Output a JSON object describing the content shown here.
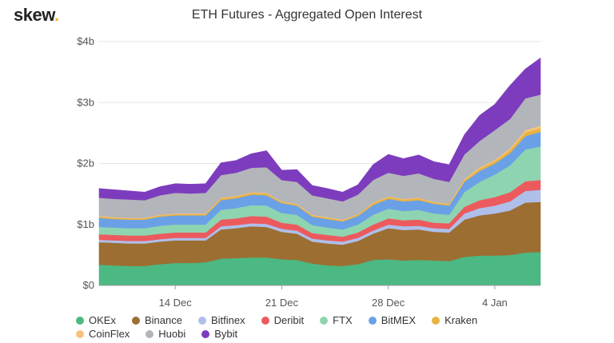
{
  "header": {
    "logo_text": "skew",
    "logo_dot": "."
  },
  "chart_data": {
    "type": "area",
    "stacked": true,
    "title": "ETH Futures - Aggregated Open Interest",
    "xlabel": "",
    "ylabel": "",
    "ylim": [
      0,
      4000000000
    ],
    "y_ticks": [
      0,
      1000000000,
      2000000000,
      3000000000,
      4000000000
    ],
    "y_tick_labels": [
      "$0",
      "$1b",
      "$2b",
      "$3b",
      "$4b"
    ],
    "x": [
      "Dec 9",
      "Dec 10",
      "Dec 11",
      "Dec 12",
      "Dec 13",
      "Dec 14",
      "Dec 15",
      "Dec 16",
      "Dec 17",
      "Dec 18",
      "Dec 19",
      "Dec 20",
      "Dec 21",
      "Dec 22",
      "Dec 23",
      "Dec 24",
      "Dec 25",
      "Dec 26",
      "Dec 27",
      "Dec 28",
      "Dec 29",
      "Dec 30",
      "Dec 31",
      "Jan 1",
      "Jan 2",
      "Jan 3",
      "Jan 4",
      "Jan 5",
      "Jan 6",
      "Jan 7"
    ],
    "x_tick_labels": [
      {
        "label": "14 Dec",
        "at": "Dec 14"
      },
      {
        "label": "21 Dec",
        "at": "Dec 21"
      },
      {
        "label": "28 Dec",
        "at": "Dec 28"
      },
      {
        "label": "4 Jan",
        "at": "Jan 4"
      }
    ],
    "grid": true,
    "legend": "bottom",
    "series": [
      {
        "name": "OKEx",
        "color": "#4cb883",
        "values": [
          0.34,
          0.33,
          0.32,
          0.32,
          0.35,
          0.37,
          0.37,
          0.38,
          0.44,
          0.45,
          0.46,
          0.46,
          0.43,
          0.42,
          0.36,
          0.33,
          0.32,
          0.35,
          0.42,
          0.43,
          0.41,
          0.42,
          0.41,
          0.4,
          0.47,
          0.49,
          0.49,
          0.5,
          0.54,
          0.55
        ]
      },
      {
        "name": "Binance",
        "color": "#9c6e32",
        "values": [
          0.37,
          0.37,
          0.37,
          0.37,
          0.37,
          0.37,
          0.37,
          0.36,
          0.48,
          0.49,
          0.51,
          0.5,
          0.45,
          0.43,
          0.36,
          0.36,
          0.35,
          0.38,
          0.43,
          0.51,
          0.5,
          0.5,
          0.47,
          0.47,
          0.61,
          0.66,
          0.69,
          0.73,
          0.82,
          0.82
        ]
      },
      {
        "name": "Bitfinex",
        "color": "#aebfea",
        "values": [
          0.04,
          0.04,
          0.04,
          0.04,
          0.04,
          0.04,
          0.04,
          0.04,
          0.05,
          0.05,
          0.05,
          0.05,
          0.05,
          0.05,
          0.05,
          0.05,
          0.05,
          0.05,
          0.05,
          0.06,
          0.06,
          0.06,
          0.06,
          0.06,
          0.1,
          0.12,
          0.13,
          0.15,
          0.19,
          0.2
        ]
      },
      {
        "name": "Deribit",
        "color": "#ec5a5e",
        "values": [
          0.09,
          0.09,
          0.09,
          0.09,
          0.09,
          0.09,
          0.09,
          0.09,
          0.11,
          0.11,
          0.12,
          0.12,
          0.1,
          0.1,
          0.09,
          0.09,
          0.08,
          0.09,
          0.1,
          0.1,
          0.1,
          0.1,
          0.09,
          0.09,
          0.11,
          0.13,
          0.14,
          0.15,
          0.16,
          0.16
        ]
      },
      {
        "name": "FTX",
        "color": "#8fd4b0",
        "values": [
          0.12,
          0.12,
          0.12,
          0.12,
          0.13,
          0.13,
          0.13,
          0.13,
          0.16,
          0.17,
          0.18,
          0.18,
          0.16,
          0.16,
          0.13,
          0.12,
          0.12,
          0.13,
          0.16,
          0.16,
          0.15,
          0.16,
          0.15,
          0.14,
          0.24,
          0.3,
          0.37,
          0.44,
          0.52,
          0.55
        ]
      },
      {
        "name": "BitMEX",
        "color": "#6aa1e6",
        "values": [
          0.15,
          0.14,
          0.14,
          0.14,
          0.15,
          0.15,
          0.15,
          0.15,
          0.16,
          0.16,
          0.17,
          0.17,
          0.16,
          0.15,
          0.14,
          0.14,
          0.13,
          0.14,
          0.16,
          0.16,
          0.16,
          0.16,
          0.16,
          0.15,
          0.17,
          0.18,
          0.18,
          0.2,
          0.22,
          0.24
        ]
      },
      {
        "name": "Kraken",
        "color": "#e9b341",
        "values": [
          0.02,
          0.02,
          0.02,
          0.02,
          0.02,
          0.02,
          0.02,
          0.02,
          0.03,
          0.03,
          0.03,
          0.03,
          0.02,
          0.02,
          0.02,
          0.02,
          0.02,
          0.02,
          0.03,
          0.03,
          0.03,
          0.03,
          0.02,
          0.02,
          0.03,
          0.04,
          0.04,
          0.05,
          0.06,
          0.06
        ]
      },
      {
        "name": "CoinFlex",
        "color": "#f7c27e",
        "values": [
          0.01,
          0.01,
          0.01,
          0.01,
          0.01,
          0.01,
          0.01,
          0.01,
          0.01,
          0.01,
          0.01,
          0.01,
          0.01,
          0.01,
          0.01,
          0.01,
          0.01,
          0.01,
          0.01,
          0.01,
          0.01,
          0.01,
          0.01,
          0.01,
          0.02,
          0.02,
          0.02,
          0.03,
          0.04,
          0.04
        ]
      },
      {
        "name": "Huobi",
        "color": "#b2b5b9",
        "values": [
          0.3,
          0.3,
          0.3,
          0.29,
          0.32,
          0.34,
          0.33,
          0.34,
          0.37,
          0.38,
          0.4,
          0.42,
          0.35,
          0.36,
          0.32,
          0.31,
          0.3,
          0.32,
          0.37,
          0.39,
          0.38,
          0.4,
          0.38,
          0.36,
          0.4,
          0.43,
          0.49,
          0.48,
          0.52,
          0.51
        ]
      },
      {
        "name": "Bybit",
        "color": "#7d3cbd",
        "values": [
          0.15,
          0.15,
          0.14,
          0.13,
          0.14,
          0.15,
          0.15,
          0.15,
          0.2,
          0.2,
          0.23,
          0.27,
          0.16,
          0.2,
          0.16,
          0.16,
          0.15,
          0.16,
          0.25,
          0.3,
          0.28,
          0.3,
          0.28,
          0.28,
          0.32,
          0.42,
          0.42,
          0.55,
          0.48,
          0.6
        ]
      }
    ]
  }
}
